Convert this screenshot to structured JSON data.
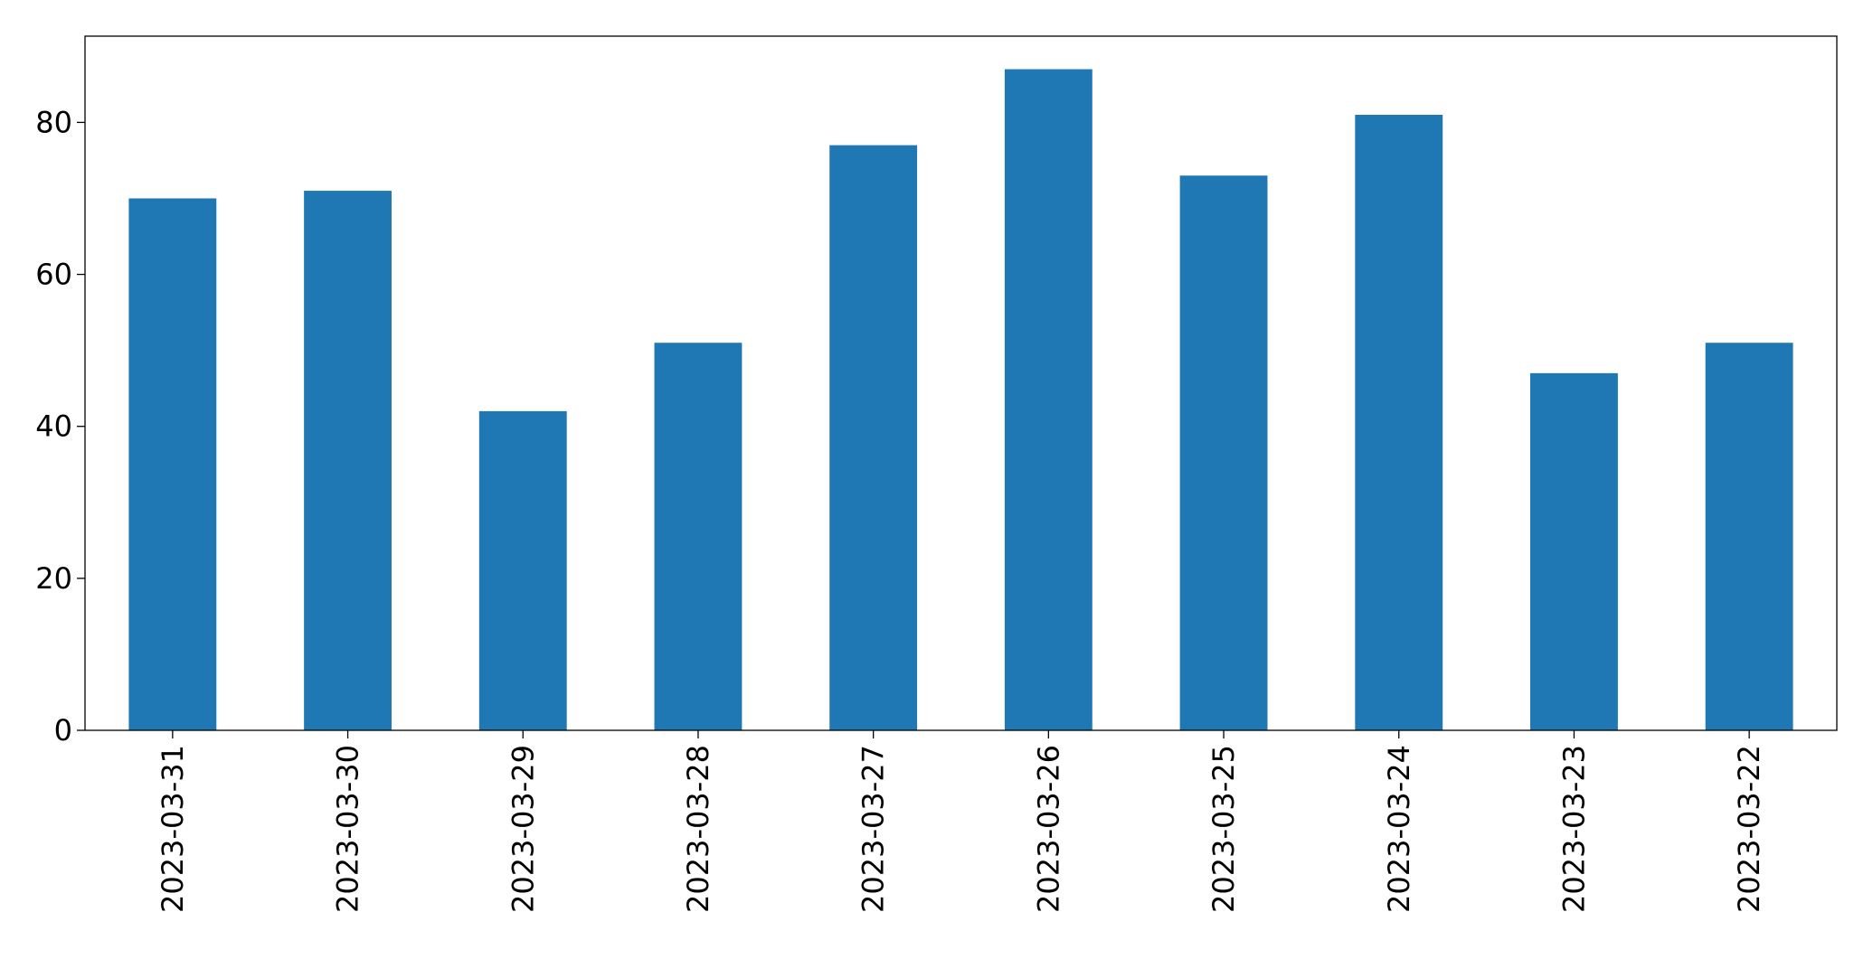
{
  "chart_data": {
    "type": "bar",
    "categories": [
      "2023-03-31",
      "2023-03-30",
      "2023-03-29",
      "2023-03-28",
      "2023-03-27",
      "2023-03-26",
      "2023-03-25",
      "2023-03-24",
      "2023-03-23",
      "2023-03-22"
    ],
    "values": [
      70,
      71,
      42,
      51,
      77,
      87,
      73,
      81,
      47,
      51
    ],
    "color": "#1f77b4",
    "ylim": [
      0,
      91.35
    ],
    "yticks": [
      0,
      20,
      40,
      60,
      80
    ],
    "grid": false
  }
}
